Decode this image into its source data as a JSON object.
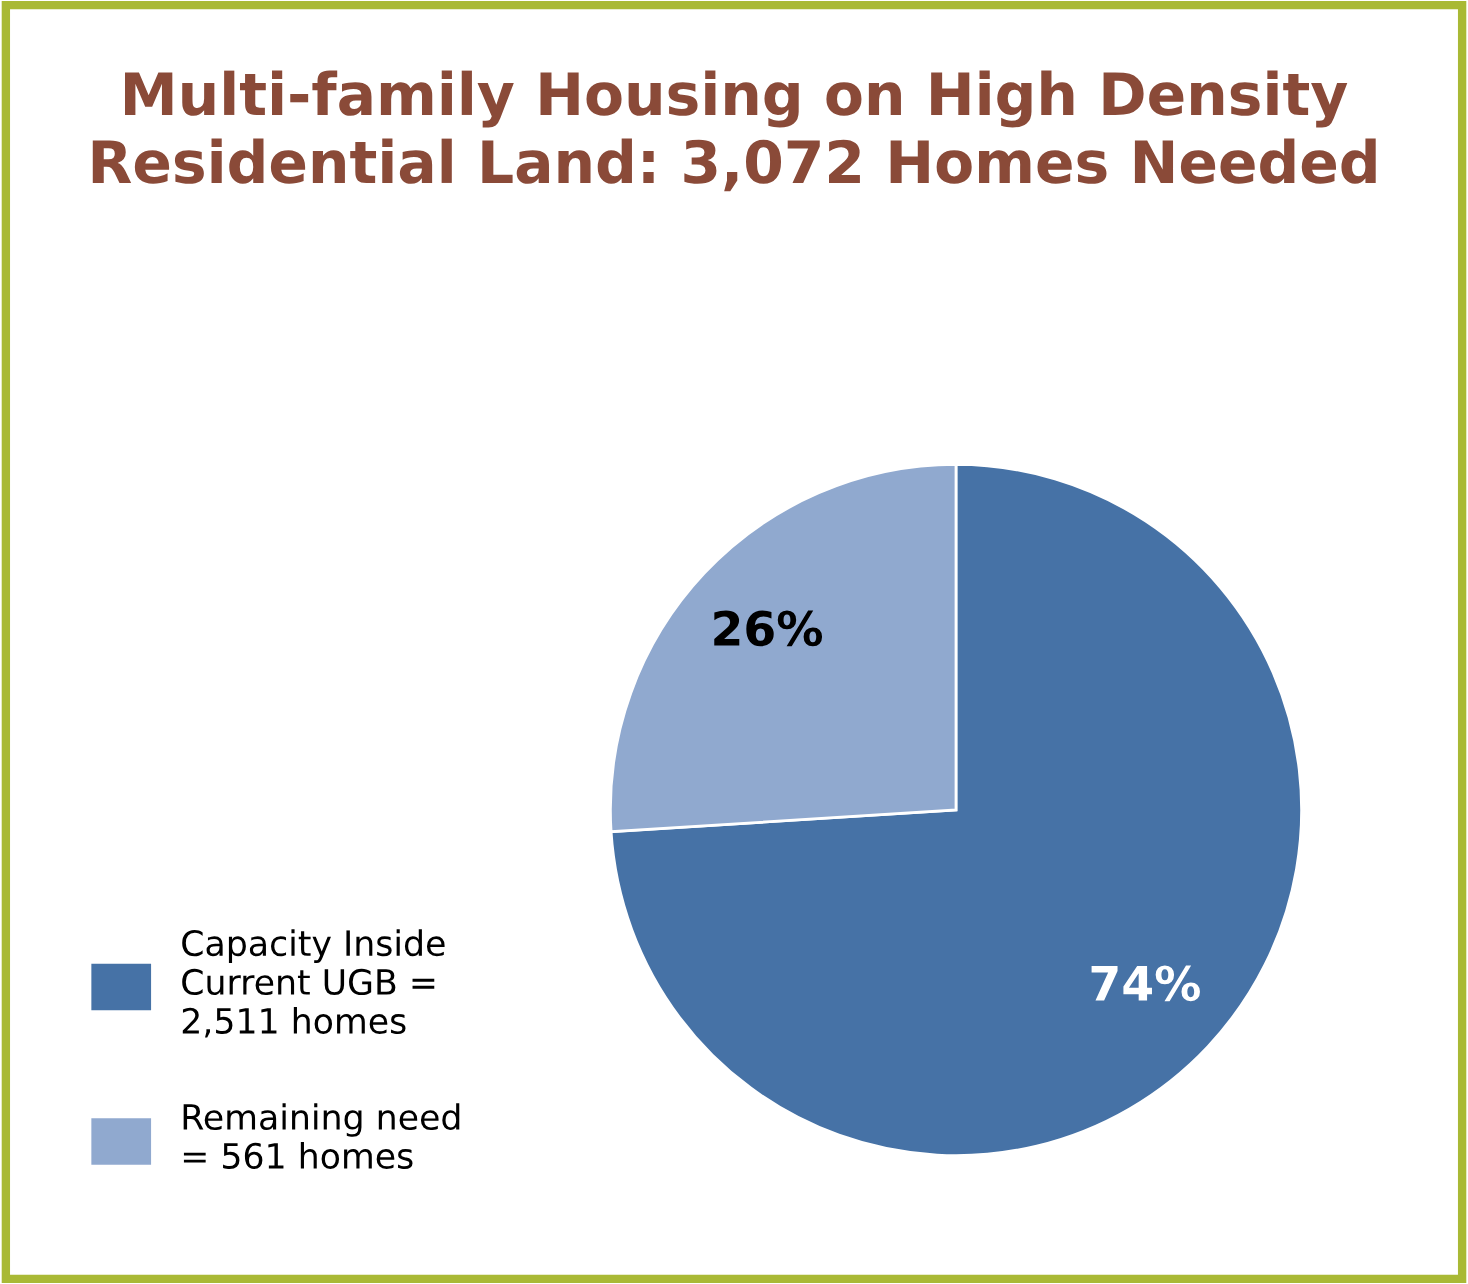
{
  "chart_data": {
    "type": "pie",
    "title": "Multi-family Housing on High Density\nResidential Land: 3,072 Homes Needed",
    "categories": [
      "Capacity Inside\nCurrent UGB =\n2,511 homes",
      "Remaining need\n= 561 homes"
    ],
    "values": [
      74,
      26
    ],
    "colors": [
      "#4672a6",
      "#90a9cf"
    ],
    "value_labels": [
      "74%",
      "26%"
    ],
    "legend": "bottom left"
  }
}
